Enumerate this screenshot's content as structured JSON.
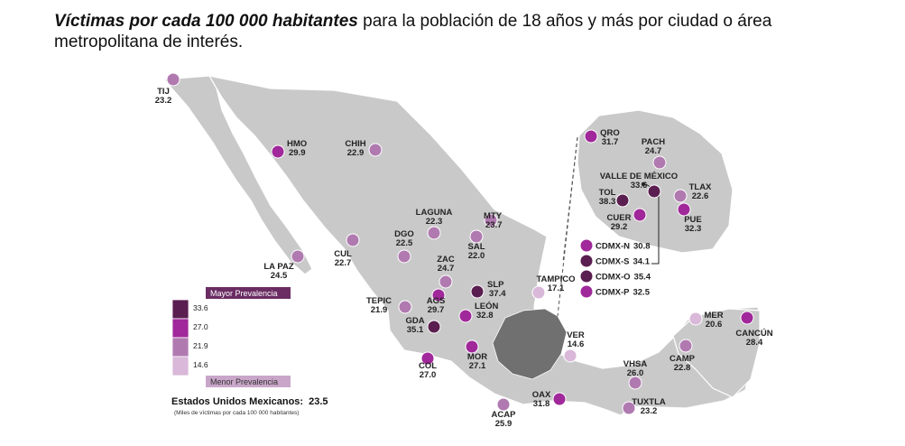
{
  "title": {
    "bold": "Víctimas por cada 100 000 habitantes",
    "rest": " para la población de 18 años y más por ciudad o área metropolitana de interés."
  },
  "colors": {
    "land": "#c9c9c9",
    "border": "#ffffff",
    "highlight": "#707070",
    "inset_frame": "#555555",
    "levels": {
      "level4": "#5a1e50",
      "level3": "#a0289a",
      "level2": "#b07ab0",
      "level1": "#d9b8d9"
    },
    "band_high": "#6a2c63",
    "band_low": "#c9a6c9"
  },
  "legend": {
    "high_label": "Mayor Prevalencia",
    "low_label": "Menor Prevalencia",
    "values": [
      "33.6",
      "27.0",
      "21.9",
      "14.6"
    ]
  },
  "national": {
    "label": "Estados Unidos Mexicanos:",
    "value": "23.5",
    "note": "(Miles de víctimas por cada 100 000 habitantes)"
  },
  "cities": [
    {
      "code": "TIJ",
      "value": "23.2",
      "level": 2
    },
    {
      "code": "HMO",
      "value": "29.9",
      "level": 3
    },
    {
      "code": "CHIH",
      "value": "22.9",
      "level": 2
    },
    {
      "code": "LA PAZ",
      "value": "24.5",
      "level": 2
    },
    {
      "code": "CUL",
      "value": "22.7",
      "level": 2
    },
    {
      "code": "LAGUNA",
      "value": "22.3",
      "level": 2
    },
    {
      "code": "DGO",
      "value": "22.5",
      "level": 2
    },
    {
      "code": "MTY",
      "value": "23.7",
      "level": 2
    },
    {
      "code": "SAL",
      "value": "22.0",
      "level": 2
    },
    {
      "code": "ZAC",
      "value": "24.7",
      "level": 2
    },
    {
      "code": "SLP",
      "value": "37.4",
      "level": 4
    },
    {
      "code": "TEPIC",
      "value": "21.9",
      "level": 2
    },
    {
      "code": "AGS",
      "value": "29.7",
      "level": 3
    },
    {
      "code": "LEÓN",
      "value": "32.8",
      "level": 3
    },
    {
      "code": "GDA",
      "value": "35.1",
      "level": 4
    },
    {
      "code": "COL",
      "value": "27.0",
      "level": 3
    },
    {
      "code": "MOR",
      "value": "27.1",
      "level": 3
    },
    {
      "code": "TAMPICO",
      "value": "17.1",
      "level": 1
    },
    {
      "code": "VER",
      "value": "14.6",
      "level": 1
    },
    {
      "code": "ACAP",
      "value": "25.9",
      "level": 2
    },
    {
      "code": "OAX",
      "value": "31.8",
      "level": 3
    },
    {
      "code": "VHSA",
      "value": "26.0",
      "level": 2
    },
    {
      "code": "TUXTLA",
      "value": "23.2",
      "level": 2
    },
    {
      "code": "CAMP",
      "value": "22.8",
      "level": 2
    },
    {
      "code": "MER",
      "value": "20.6",
      "level": 1
    },
    {
      "code": "CANCÚN",
      "value": "28.4",
      "level": 3
    },
    {
      "code": "QRO",
      "value": "31.7",
      "level": 3
    },
    {
      "code": "PACH",
      "value": "24.7",
      "level": 2
    },
    {
      "code": "VALLE DE MÉXICO",
      "value": "33.6",
      "level": 4
    },
    {
      "code": "TOL",
      "value": "38.3",
      "level": 4
    },
    {
      "code": "TLAX",
      "value": "22.6",
      "level": 2
    },
    {
      "code": "CUER",
      "value": "29.2",
      "level": 3
    },
    {
      "code": "PUE",
      "value": "32.3",
      "level": 3
    }
  ],
  "cdmx": [
    {
      "code": "CDMX-N",
      "value": "30.8",
      "level": 3
    },
    {
      "code": "CDMX-S",
      "value": "34.1",
      "level": 4
    },
    {
      "code": "CDMX-O",
      "value": "35.4",
      "level": 4
    },
    {
      "code": "CDMX-P",
      "value": "32.5",
      "level": 3
    }
  ]
}
